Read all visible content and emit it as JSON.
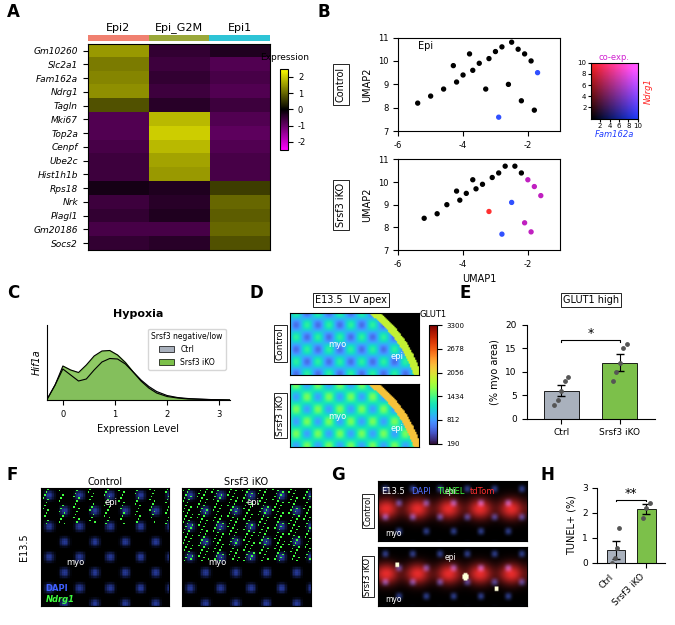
{
  "chart_data": [
    {
      "label": "A",
      "type": "heatmap",
      "categories": [
        "Epi2",
        "Epi_G2M",
        "Epi1"
      ],
      "colors": [
        "#f08070",
        "#9aa83a",
        "#2ec4d6"
      ],
      "rows": [
        "Gm10260",
        "Slc2a1",
        "Fam162a",
        "Ndrg1",
        "Tagln",
        "Mki67",
        "Top2a",
        "Cenpf",
        "Ube2c",
        "Hist1h1b",
        "Rps18",
        "Nrk",
        "Plagl1",
        "Gm20186",
        "Socs2"
      ],
      "values": [
        [
          1.5,
          -0.5,
          -0.3
        ],
        [
          1.2,
          -0.6,
          -0.8
        ],
        [
          1.3,
          -0.5,
          -0.7
        ],
        [
          1.4,
          -0.6,
          -0.8
        ],
        [
          0.8,
          -0.4,
          -0.6
        ],
        [
          -0.8,
          1.8,
          -0.8
        ],
        [
          -0.8,
          2.0,
          -0.9
        ],
        [
          -0.7,
          1.8,
          -0.8
        ],
        [
          -0.6,
          1.6,
          -0.7
        ],
        [
          -0.6,
          1.5,
          -0.7
        ],
        [
          -0.2,
          -0.3,
          0.6
        ],
        [
          -0.6,
          -0.4,
          1.0
        ],
        [
          -0.5,
          -0.3,
          0.9
        ],
        [
          -0.7,
          -0.7,
          1.0
        ],
        [
          -0.5,
          -0.4,
          0.8
        ]
      ],
      "colorbar_title": "Expression",
      "colorbar_lim": [
        -2.5,
        2.5
      ],
      "colorbar_ticks": [
        -2,
        -1,
        0,
        1,
        2
      ]
    },
    {
      "label": "B",
      "type": "scatter",
      "title": "Epi",
      "x_label": "UMAP1",
      "y_label": "UMAP2",
      "xlim": [
        -6,
        -1
      ],
      "xticks": [
        -6,
        -4,
        -2
      ],
      "ylim": [
        7,
        11
      ],
      "yticks": [
        7,
        8,
        9,
        10,
        11
      ],
      "panels": [
        {
          "name": "Control",
          "x": [
            -5.4,
            -5.0,
            -4.6,
            -4.2,
            -4.0,
            -3.7,
            -3.5,
            -3.2,
            -3.0,
            -2.8,
            -2.5,
            -2.3,
            -2.1,
            -1.9,
            -1.7,
            -2.6,
            -3.3,
            -2.2,
            -1.8,
            -2.9,
            -4.3,
            -3.8
          ],
          "y": [
            8.2,
            8.5,
            8.8,
            9.1,
            9.4,
            9.6,
            9.9,
            10.1,
            10.4,
            10.6,
            10.8,
            10.5,
            10.3,
            10.0,
            9.5,
            9.0,
            8.8,
            8.3,
            7.9,
            7.6,
            9.8,
            10.3
          ],
          "colors": [
            "#000000",
            "#000000",
            "#000000",
            "#000000",
            "#000000",
            "#000000",
            "#000000",
            "#000000",
            "#000000",
            "#000000",
            "#000000",
            "#000000",
            "#000000",
            "#000000",
            "#3050ff",
            "#000000",
            "#000000",
            "#000000",
            "#000000",
            "#3050ff",
            "#000000",
            "#000000"
          ]
        },
        {
          "name": "Srsf3 iKO",
          "x": [
            -5.2,
            -4.8,
            -4.5,
            -4.1,
            -3.9,
            -3.6,
            -3.4,
            -3.1,
            -2.9,
            -2.7,
            -2.4,
            -2.2,
            -2.0,
            -1.8,
            -1.6,
            -2.5,
            -3.2,
            -2.1,
            -1.9,
            -2.8,
            -4.2,
            -3.7
          ],
          "y": [
            8.4,
            8.6,
            9.0,
            9.2,
            9.5,
            9.7,
            9.9,
            10.2,
            10.4,
            10.7,
            10.7,
            10.4,
            10.1,
            9.8,
            9.4,
            9.1,
            8.7,
            8.2,
            7.8,
            7.7,
            9.6,
            10.1
          ],
          "colors": [
            "#000000",
            "#000000",
            "#000000",
            "#000000",
            "#000000",
            "#000000",
            "#000000",
            "#000000",
            "#000000",
            "#000000",
            "#000000",
            "#000000",
            "#c020c0",
            "#c020c0",
            "#c020c0",
            "#3050ff",
            "#ff3030",
            "#c020c0",
            "#c020c0",
            "#3050ff",
            "#000000",
            "#000000"
          ]
        }
      ],
      "key": {
        "series": [
          {
            "name": "Fam162a",
            "color": "#1f3cff"
          },
          {
            "name": "Ndrg1",
            "color": "#ff2020"
          },
          {
            "name": "co-exp.",
            "color": "#d020d0"
          }
        ],
        "lim": [
          0,
          10
        ],
        "ticks": [
          2,
          4,
          6,
          8,
          10
        ]
      }
    },
    {
      "label": "C",
      "type": "density",
      "title": "Hypoxia",
      "y_label": "Hif1a",
      "x_label": "Expression Level",
      "x": [
        -0.3,
        -0.15,
        0,
        0.15,
        0.3,
        0.45,
        0.6,
        0.75,
        0.9,
        1.05,
        1.2,
        1.35,
        1.5,
        1.65,
        1.8,
        2.0,
        2.2,
        2.4,
        2.6,
        2.8,
        3.0,
        3.2
      ],
      "series": [
        {
          "name": "Ctrl",
          "color": "#a9b1bd",
          "values": [
            0.02,
            0.3,
            0.62,
            0.5,
            0.38,
            0.42,
            0.6,
            0.76,
            0.83,
            0.82,
            0.72,
            0.56,
            0.4,
            0.27,
            0.17,
            0.09,
            0.05,
            0.03,
            0.02,
            0.01,
            0.005,
            0
          ]
        },
        {
          "name": "Srsf3 iKO",
          "color": "#7cc04a",
          "values": [
            0.02,
            0.3,
            0.68,
            0.6,
            0.55,
            0.7,
            0.88,
            0.98,
            0.99,
            0.9,
            0.75,
            0.56,
            0.38,
            0.24,
            0.14,
            0.07,
            0.04,
            0.02,
            0.015,
            0.01,
            0.005,
            0
          ]
        }
      ],
      "legend_title": "Srsf3 negative/low",
      "legend": "upper right",
      "xlim": [
        -0.3,
        3.2
      ],
      "xticks": [
        0,
        1,
        2,
        3
      ],
      "ylim": [
        0,
        1.5
      ],
      "tick_labels": "x"
    },
    {
      "label": "D",
      "type": "image",
      "title": "E13.5  LV apex",
      "panels": [
        "Control",
        "Srsf3 iKO"
      ],
      "texts": [
        "myo",
        "epi"
      ],
      "colorbar_title": "GLUT1",
      "colorbar_lim": [
        190,
        3300
      ],
      "colorbar_ticks": [
        190,
        812,
        1434,
        2056,
        2678,
        3300
      ]
    },
    {
      "label": "E",
      "type": "bar",
      "title": "GLUT1 high",
      "y_label": "(% myo area)",
      "categories": [
        "Ctrl",
        "Srsf3 iKO"
      ],
      "values": [
        6,
        12
      ],
      "errors": [
        1.2,
        1.8
      ],
      "points": [
        [
          3,
          4,
          6,
          8,
          9
        ],
        [
          8,
          10,
          12,
          15,
          16
        ]
      ],
      "colors": [
        "#a9b1bd",
        "#7cc04a"
      ],
      "ylim": [
        0,
        20
      ],
      "yticks": [
        0,
        5,
        10,
        15,
        20
      ],
      "significance": "*"
    },
    {
      "label": "F",
      "type": "image",
      "title": "E13.5",
      "panels": [
        "Control",
        "Srsf3 iKO"
      ],
      "texts": [
        "epi",
        "myo"
      ],
      "channels": [
        {
          "name": "DAPI",
          "color": "#4060ff"
        },
        {
          "name": "Ndrg1",
          "color": "#40ff40"
        }
      ]
    },
    {
      "label": "G",
      "type": "image",
      "title": "E13.5",
      "panels": [
        "Control",
        "Srsf3 iKO"
      ],
      "texts": [
        "epi",
        "myo"
      ],
      "channels": [
        {
          "name": "DAPI",
          "color": "#5070ff"
        },
        {
          "name": "TUNEL",
          "color": "#40ff40"
        },
        {
          "name": "tdTom",
          "color": "#ff3030"
        }
      ]
    },
    {
      "label": "H",
      "type": "bar",
      "y_label": "TUNEL+ (%)",
      "categories": [
        "Ctrl",
        "Srsf3 iKO"
      ],
      "values": [
        0.5,
        2.15
      ],
      "errors": [
        0.35,
        0.2
      ],
      "points": [
        [
          0,
          0.2,
          0.6,
          1.4
        ],
        [
          1.8,
          2.2,
          2.4
        ]
      ],
      "colors": [
        "#a9b1bd",
        "#7cc04a"
      ],
      "ylim": [
        0,
        3
      ],
      "yticks": [
        0,
        1,
        2,
        3
      ],
      "significance": "**"
    }
  ]
}
